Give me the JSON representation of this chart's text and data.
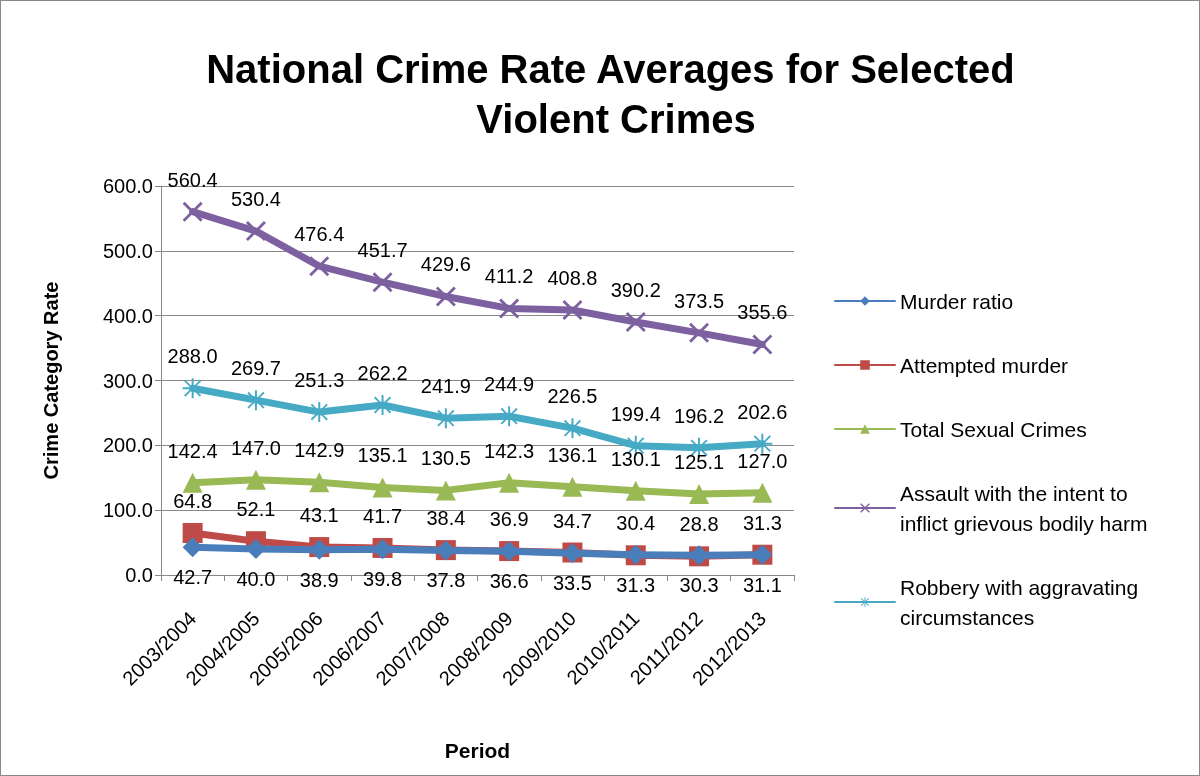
{
  "chart_data": {
    "type": "line",
    "title": "National Crime Rate Averages for Selected Violent Crimes",
    "xlabel": "Period",
    "ylabel": "Crime Category Rate",
    "categories": [
      "2003/2004",
      "2004/2005",
      "2005/2006",
      "2006/2007",
      "2007/2008",
      "2008/2009",
      "2009/2010",
      "2010/2011",
      "2011/2012",
      "2012/2013"
    ],
    "series": [
      {
        "name": "Murder ratio",
        "color": "#4a7ebb",
        "marker": "diamond",
        "values": [
          42.7,
          40.0,
          38.9,
          39.8,
          37.8,
          36.6,
          33.5,
          31.3,
          30.3,
          31.1
        ],
        "value_labels": [
          "42.7",
          "40.0",
          "38.9",
          "39.8",
          "37.8",
          "36.6",
          "33.5",
          "31.3",
          "30.3",
          "31.1"
        ]
      },
      {
        "name": "Attempted murder",
        "color": "#be4b48",
        "marker": "square",
        "values": [
          64.8,
          52.1,
          43.1,
          41.7,
          38.4,
          36.9,
          34.7,
          30.4,
          28.8,
          31.3
        ],
        "value_labels": [
          "64.8",
          "52.1",
          "43.1",
          "41.7",
          "38.4",
          "36.9",
          "34.7",
          "30.4",
          "28.8",
          "31.3"
        ]
      },
      {
        "name": "Total Sexual Crimes",
        "color": "#98b954",
        "marker": "triangle",
        "values": [
          142.4,
          147.0,
          142.9,
          135.1,
          130.5,
          142.3,
          136.1,
          130.1,
          125.1,
          127.0
        ],
        "value_labels": [
          "142.4",
          "147.0",
          "142.9",
          "135.1",
          "130.5",
          "142.3",
          "136.1",
          "130.1",
          "125.1",
          "127.0"
        ]
      },
      {
        "name": "Assault with the intent to inflict grievous bodily harm",
        "color": "#7d60a0",
        "marker": "cross",
        "values": [
          560.4,
          530.4,
          476.4,
          451.7,
          429.6,
          411.2,
          408.8,
          390.2,
          373.5,
          355.6
        ],
        "value_labels": [
          "560.4",
          "530.4",
          "476.4",
          "451.7",
          "429.6",
          "411.2",
          "408.8",
          "390.2",
          "373.5",
          "355.6"
        ]
      },
      {
        "name": "Robbery with aggravating circumstances",
        "color": "#46aac5",
        "marker": "star",
        "values": [
          288.0,
          269.7,
          251.3,
          262.2,
          241.9,
          244.9,
          226.5,
          199.4,
          196.2,
          202.6
        ],
        "value_labels": [
          "288.0",
          "269.7",
          "251.3",
          "262.2",
          "241.9",
          "244.9",
          "226.5",
          "199.4",
          "196.2",
          "202.6"
        ]
      }
    ],
    "ylim": [
      0,
      600
    ],
    "yticks": [
      {
        "value": 0,
        "label": "0.0"
      },
      {
        "value": 100,
        "label": "100.0"
      },
      {
        "value": 200,
        "label": "200.0"
      },
      {
        "value": 300,
        "label": "300.0"
      },
      {
        "value": 400,
        "label": "400.0"
      },
      {
        "value": 500,
        "label": "500.0"
      },
      {
        "value": 600,
        "label": "600.0"
      }
    ],
    "grid": "y",
    "legend": "right",
    "line_style": "solid"
  }
}
